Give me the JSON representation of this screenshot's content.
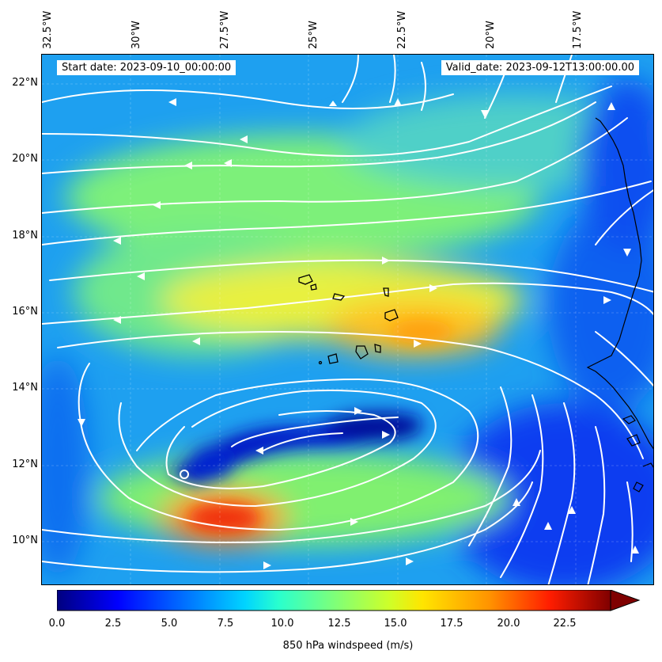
{
  "header": {
    "start_date": "Start date: 2023-09-10_00:00:00",
    "valid_date": "Valid_date: 2023-09-12T13:00:00.00"
  },
  "map": {
    "lon_labels": [
      "32.5°W",
      "30°W",
      "27.5°W",
      "25°W",
      "22.5°W",
      "20°W",
      "17.5°W"
    ],
    "lat_labels": [
      "22°N",
      "20°N",
      "18°N",
      "16°N",
      "14°N",
      "12°N",
      "10°N"
    ],
    "field": "850 hPa wind speed with streamlines",
    "islands": "Cabo Verde",
    "coastline": "West Africa"
  },
  "colorbar": {
    "ticks": [
      "0.0",
      "2.5",
      "5.0",
      "7.5",
      "10.0",
      "12.5",
      "15.0",
      "17.5",
      "20.0",
      "22.5"
    ],
    "title": "850 hPa windspeed (m/s)",
    "colormap": "jet",
    "min": 0,
    "max": 25,
    "extend": "max"
  }
}
